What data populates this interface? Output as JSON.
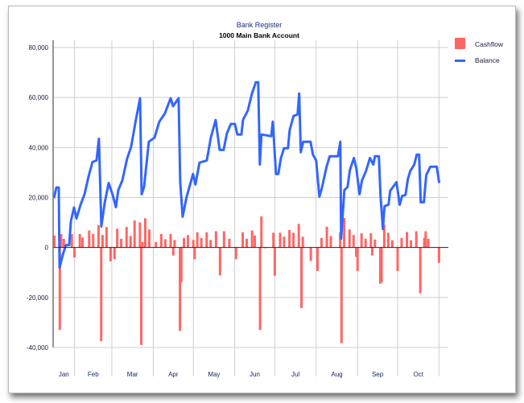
{
  "chart_data": {
    "type": "bar+line",
    "title": "Bank Register",
    "subtitle": "1000 Main Bank Account",
    "xlabel": "",
    "ylabel": "",
    "ylim": [
      -40000,
      80000
    ],
    "xlim_day_of_year": [
      15,
      311
    ],
    "yticks": [
      80000,
      60000,
      40000,
      20000,
      0,
      -20000,
      -40000
    ],
    "ytick_labels": [
      "80,000",
      "60,000",
      "40,000",
      "20,000",
      "0",
      "-20,000",
      "-40,000"
    ],
    "months": [
      {
        "label": "Jan",
        "start": 15,
        "end": 31
      },
      {
        "label": "Feb",
        "start": 31,
        "end": 59
      },
      {
        "label": "Mar",
        "start": 59,
        "end": 90
      },
      {
        "label": "Apr",
        "start": 90,
        "end": 120
      },
      {
        "label": "May",
        "start": 120,
        "end": 151
      },
      {
        "label": "Jun",
        "start": 151,
        "end": 181
      },
      {
        "label": "Jul",
        "start": 181,
        "end": 212
      },
      {
        "label": "Aug",
        "start": 212,
        "end": 243
      },
      {
        "label": "Sep",
        "start": 243,
        "end": 273
      },
      {
        "label": "Oct",
        "start": 273,
        "end": 304
      }
    ],
    "grid": true,
    "legend_position": "right",
    "series": [
      {
        "name": "Cashflow",
        "kind": "bar",
        "color": "#ff6666",
        "points": [
          [
            16,
            4800
          ],
          [
            20,
            -33000
          ],
          [
            21,
            5400
          ],
          [
            23,
            3500
          ],
          [
            29,
            5400
          ],
          [
            31,
            -4000
          ],
          [
            35,
            5400
          ],
          [
            37,
            4000
          ],
          [
            42,
            6800
          ],
          [
            45,
            5400
          ],
          [
            49,
            9000
          ],
          [
            51,
            -37500
          ],
          [
            52,
            5000
          ],
          [
            55,
            8200
          ],
          [
            58,
            -5500
          ],
          [
            61,
            -4700
          ],
          [
            63,
            7500
          ],
          [
            66,
            3500
          ],
          [
            70,
            8200
          ],
          [
            73,
            4600
          ],
          [
            76,
            10800
          ],
          [
            80,
            10000
          ],
          [
            81,
            -39000
          ],
          [
            82,
            2200
          ],
          [
            84,
            11700
          ],
          [
            87,
            7200
          ],
          [
            92,
            2200
          ],
          [
            96,
            5400
          ],
          [
            99,
            3300
          ],
          [
            103,
            5400
          ],
          [
            105,
            -3200
          ],
          [
            106,
            3000
          ],
          [
            110,
            -33400
          ],
          [
            111,
            -14000
          ],
          [
            113,
            3800
          ],
          [
            116,
            5000
          ],
          [
            120,
            3000
          ],
          [
            121,
            -4700
          ],
          [
            123,
            6100
          ],
          [
            126,
            3800
          ],
          [
            130,
            6100
          ],
          [
            133,
            3000
          ],
          [
            137,
            6500
          ],
          [
            140,
            -11200
          ],
          [
            143,
            6500
          ],
          [
            147,
            3500
          ],
          [
            152,
            -4700
          ],
          [
            157,
            6100
          ],
          [
            160,
            3500
          ],
          [
            164,
            6800
          ],
          [
            166,
            4800
          ],
          [
            170,
            -33000
          ],
          [
            171,
            12400
          ],
          [
            174,
            -300
          ],
          [
            180,
            5900
          ],
          [
            181,
            -11300
          ],
          [
            185,
            5900
          ],
          [
            188,
            4300
          ],
          [
            192,
            7000
          ],
          [
            195,
            5900
          ],
          [
            199,
            9400
          ],
          [
            201,
            -24200
          ],
          [
            202,
            4300
          ],
          [
            208,
            -5400
          ],
          [
            213,
            -9400
          ],
          [
            216,
            3800
          ],
          [
            220,
            8300
          ],
          [
            223,
            4600
          ],
          [
            230,
            6100
          ],
          [
            231,
            -38300
          ],
          [
            233,
            11800
          ],
          [
            237,
            7200
          ],
          [
            240,
            5000
          ],
          [
            242,
            -3800
          ],
          [
            243,
            -9400
          ],
          [
            246,
            5700
          ],
          [
            249,
            3500
          ],
          [
            253,
            5700
          ],
          [
            254,
            -3200
          ],
          [
            256,
            3200
          ],
          [
            260,
            -14500
          ],
          [
            261,
            -14000
          ],
          [
            263,
            9100
          ],
          [
            266,
            5900
          ],
          [
            269,
            2900
          ],
          [
            273,
            -9400
          ],
          [
            276,
            3800
          ],
          [
            280,
            6200
          ],
          [
            283,
            2900
          ],
          [
            287,
            6500
          ],
          [
            290,
            -18300
          ],
          [
            293,
            3800
          ],
          [
            294,
            6500
          ],
          [
            296,
            3500
          ],
          [
            304,
            -6100
          ]
        ]
      },
      {
        "name": "Balance",
        "kind": "line",
        "color": "#3366ff",
        "points": [
          [
            15.6,
            19700
          ],
          [
            17.4,
            24000
          ],
          [
            19.2,
            24000
          ],
          [
            19.8,
            -8000
          ],
          [
            22.2,
            -3000
          ],
          [
            24.6,
            1000
          ],
          [
            27,
            1000
          ],
          [
            28.3,
            10600
          ],
          [
            30.7,
            16000
          ],
          [
            32.5,
            11600
          ],
          [
            35.5,
            17000
          ],
          [
            38.5,
            21300
          ],
          [
            41.5,
            28400
          ],
          [
            44.5,
            34200
          ],
          [
            47.5,
            34800
          ],
          [
            49.3,
            43500
          ],
          [
            51.1,
            8400
          ],
          [
            53.6,
            17700
          ],
          [
            56.6,
            25800
          ],
          [
            59.6,
            21000
          ],
          [
            62,
            16100
          ],
          [
            63.8,
            22900
          ],
          [
            66.8,
            26800
          ],
          [
            70.4,
            35500
          ],
          [
            73.4,
            40300
          ],
          [
            77,
            51000
          ],
          [
            80.1,
            59700
          ],
          [
            81.3,
            21300
          ],
          [
            83.1,
            24200
          ],
          [
            86.7,
            42300
          ],
          [
            90.9,
            43900
          ],
          [
            94.5,
            50300
          ],
          [
            98.7,
            53600
          ],
          [
            103,
            59700
          ],
          [
            104.8,
            56500
          ],
          [
            109,
            59700
          ],
          [
            110.2,
            26100
          ],
          [
            112,
            12300
          ],
          [
            115,
            20300
          ],
          [
            119.8,
            29400
          ],
          [
            121.6,
            25200
          ],
          [
            124.6,
            33900
          ],
          [
            130.1,
            34800
          ],
          [
            133.1,
            43900
          ],
          [
            136.7,
            51000
          ],
          [
            139.7,
            39000
          ],
          [
            142.7,
            39000
          ],
          [
            145.1,
            45500
          ],
          [
            148.1,
            49400
          ],
          [
            151.1,
            49400
          ],
          [
            153,
            45200
          ],
          [
            156,
            45200
          ],
          [
            157.2,
            51000
          ],
          [
            160.8,
            54800
          ],
          [
            163.8,
            61300
          ],
          [
            166.8,
            66100
          ],
          [
            168.6,
            66100
          ],
          [
            169.8,
            33200
          ],
          [
            171,
            45200
          ],
          [
            178.3,
            44500
          ],
          [
            179.5,
            50300
          ],
          [
            181.9,
            29400
          ],
          [
            183.7,
            29400
          ],
          [
            185.5,
            35500
          ],
          [
            187.9,
            39700
          ],
          [
            190.9,
            39700
          ],
          [
            192.1,
            46800
          ],
          [
            195.1,
            52600
          ],
          [
            198.1,
            53200
          ],
          [
            199.3,
            61600
          ],
          [
            200.5,
            38100
          ],
          [
            202.3,
            42300
          ],
          [
            207.8,
            42300
          ],
          [
            209.6,
            37100
          ],
          [
            212,
            34800
          ],
          [
            214.4,
            20300
          ],
          [
            216.2,
            23500
          ],
          [
            219.8,
            32300
          ],
          [
            222.2,
            36500
          ],
          [
            228.3,
            36500
          ],
          [
            230.1,
            42300
          ],
          [
            230.7,
            3500
          ],
          [
            233.1,
            22900
          ],
          [
            235.5,
            24200
          ],
          [
            237.3,
            31000
          ],
          [
            240.3,
            35800
          ],
          [
            242.1,
            31600
          ],
          [
            244.5,
            21300
          ],
          [
            246.3,
            26800
          ],
          [
            249.3,
            30600
          ],
          [
            252.3,
            35800
          ],
          [
            254.8,
            33200
          ],
          [
            256,
            36500
          ],
          [
            259,
            36500
          ],
          [
            260.2,
            21000
          ],
          [
            262,
            7400
          ],
          [
            263.2,
            16500
          ],
          [
            266.2,
            17100
          ],
          [
            267.4,
            22600
          ],
          [
            272.2,
            26100
          ],
          [
            274.6,
            17100
          ],
          [
            276.4,
            20600
          ],
          [
            278.9,
            21000
          ],
          [
            280.7,
            27400
          ],
          [
            282.5,
            30600
          ],
          [
            285.5,
            33200
          ],
          [
            287.3,
            37100
          ],
          [
            289.1,
            37100
          ],
          [
            290.3,
            18100
          ],
          [
            292.7,
            18100
          ],
          [
            294.5,
            29000
          ],
          [
            297.5,
            32300
          ],
          [
            302.3,
            32300
          ],
          [
            304.2,
            25800
          ]
        ]
      }
    ]
  }
}
